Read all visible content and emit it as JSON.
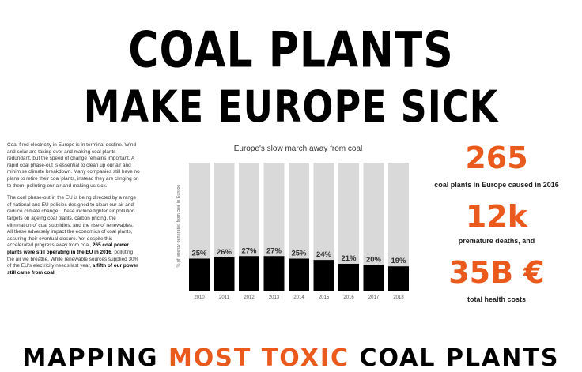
{
  "header": {
    "title_line1": "COAL PLANTS",
    "title_line2": "MAKE EUROPE SICK"
  },
  "intro": {
    "p1": "Coal-fired electricity in Europe is in terminal decline. Wind and solar are taking over and making coal plants redundant, but the speed of change remains important. A rapid coal phase-out is essential to clean up our air and minimise climate breakdown. Many companies still have no plans to retire their coal plants, instead they are clinging on to them, polluting our air and making us sick.",
    "p2a": "The coal phase-out in the EU is being directed by a range of national and EU policies designed to clean our air and reduce climate change. These include tighter air pollution targets on ageing coal plants, carbon pricing, the elimination of coal subsidies, and the rise of renewables. All these adversely impact the economics of coal plants, assuring their eventual closure. Yet despite this accelerated progress away from coal, ",
    "p2b": "265 coal power plants were still operating in the EU in 2016",
    "p2c": ", polluting the air we breathe. While renewable sources supplied 30% of the EU's electricity needs last year, ",
    "p2d": "a fifth of our power still came from coal."
  },
  "chart_data": {
    "type": "bar",
    "title": "Europe's slow march away from coal",
    "ylabel": "% of energy generated from coal in Europe",
    "xlabel": "",
    "categories": [
      "2010",
      "2011",
      "2012",
      "2013",
      "2014",
      "2015",
      "2016",
      "2017",
      "2018"
    ],
    "values": [
      25,
      26,
      27,
      27,
      25,
      24,
      21,
      20,
      19
    ],
    "value_labels": [
      "25%",
      "26%",
      "27%",
      "27%",
      "25%",
      "24%",
      "21%",
      "20%",
      "19%"
    ],
    "ylim": [
      0,
      100
    ],
    "colors": {
      "bar": "#000000",
      "background": "#d9d9d9"
    }
  },
  "stats": {
    "plants_value": "265",
    "plants_caption": "coal plants in Europe caused in 2016",
    "deaths_value": "12k",
    "deaths_caption": "premature deaths, and",
    "costs_value": "35B €",
    "costs_caption": "total health costs"
  },
  "section": {
    "part1": "MAPPING ",
    "part2": "MOST TOXIC",
    "part3": " COAL PLANTS"
  },
  "colors": {
    "accent": "#ea5a1c"
  }
}
